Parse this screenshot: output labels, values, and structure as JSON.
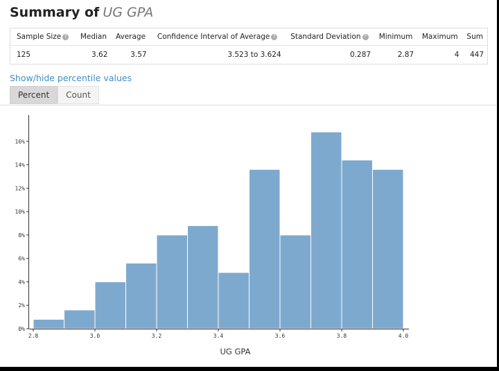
{
  "summary": {
    "title_prefix": "Summary of",
    "title_variable": "UG GPA",
    "headers": [
      "Sample Size",
      "Median",
      "Average",
      "Confidence Interval of Average",
      "Standard Deviation",
      "Minimum",
      "Maximum",
      "Sum"
    ],
    "values": [
      "125",
      "3.62",
      "3.57",
      "3.523 to 3.624",
      "0.287",
      "2.87",
      "4",
      "447"
    ]
  },
  "controls": {
    "percentile_link": "Show/hide percentile values",
    "tabs": [
      "Percent",
      "Count"
    ],
    "active_tab": "Percent"
  },
  "colors": {
    "bar": "#7ea9cf",
    "link": "#3d8fc8"
  },
  "chart_data": {
    "type": "bar",
    "xlabel": "UG GPA",
    "bin_edges": [
      2.8,
      2.9,
      3.0,
      3.1,
      3.2,
      3.3,
      3.4,
      3.5,
      3.6,
      3.7,
      3.8,
      3.9,
      4.0
    ],
    "values": [
      0.8,
      1.6,
      4.0,
      5.6,
      8.0,
      8.8,
      4.8,
      13.6,
      8.0,
      16.8,
      14.4,
      13.6
    ],
    "xticks": [
      "2.8",
      "3.0",
      "3.2",
      "3.4",
      "3.6",
      "3.8",
      "4.0"
    ],
    "yticks": [
      "0%",
      "2%",
      "4%",
      "6%",
      "8%",
      "10%",
      "12%",
      "14%",
      "16%"
    ],
    "xlim": [
      2.8,
      4.0
    ],
    "ylim": [
      0,
      18
    ],
    "grid": false
  }
}
